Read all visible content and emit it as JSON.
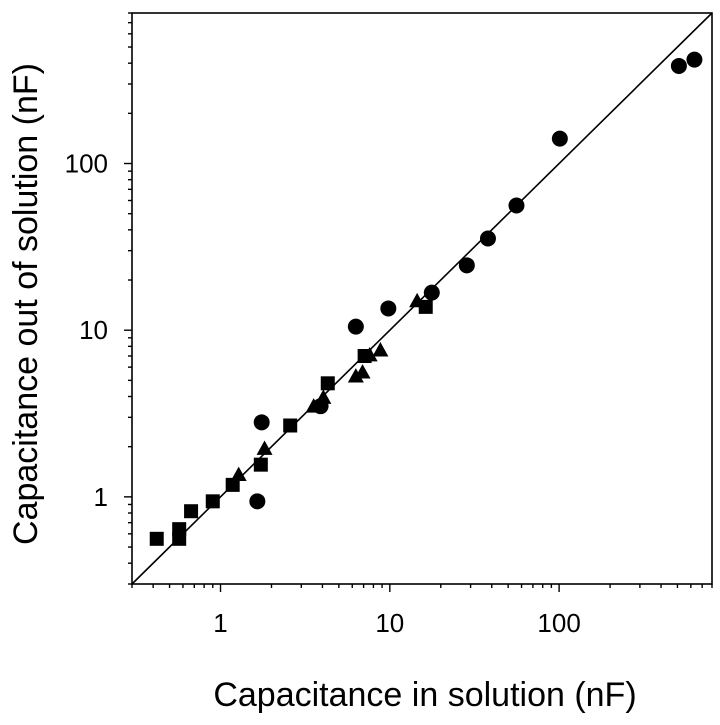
{
  "chart_data": {
    "type": "scatter",
    "title": "",
    "xlabel": "Capacitance in solution (nF)",
    "ylabel": "Capacitance out of solution (nF)",
    "xscale": "log",
    "yscale": "log",
    "xlim": [
      0.3,
      800
    ],
    "ylim": [
      0.3,
      800
    ],
    "x_ticks": [
      {
        "value": 1,
        "label": "1"
      },
      {
        "value": 10,
        "label": "10"
      },
      {
        "value": 100,
        "label": "100"
      }
    ],
    "y_ticks": [
      {
        "value": 1,
        "label": "1"
      },
      {
        "value": 10,
        "label": "10"
      },
      {
        "value": 100,
        "label": "100"
      }
    ],
    "grid": false,
    "legend": "none",
    "reference_line": {
      "type": "identity",
      "from": [
        0.3,
        0.3
      ],
      "to": [
        800,
        800
      ]
    },
    "series": [
      {
        "marker": "circle",
        "color": "#000000",
        "points": [
          {
            "x": 1.65,
            "y": 0.94
          },
          {
            "x": 1.75,
            "y": 2.8
          },
          {
            "x": 3.9,
            "y": 3.5
          },
          {
            "x": 6.3,
            "y": 10.5
          },
          {
            "x": 9.8,
            "y": 13.5
          },
          {
            "x": 17.7,
            "y": 16.8
          },
          {
            "x": 28.5,
            "y": 24.5
          },
          {
            "x": 38,
            "y": 35.5
          },
          {
            "x": 56,
            "y": 56
          },
          {
            "x": 101,
            "y": 141
          },
          {
            "x": 510,
            "y": 385
          },
          {
            "x": 630,
            "y": 420
          }
        ]
      },
      {
        "marker": "square",
        "color": "#000000",
        "points": [
          {
            "x": 0.42,
            "y": 0.56
          },
          {
            "x": 0.57,
            "y": 0.56
          },
          {
            "x": 0.57,
            "y": 0.64
          },
          {
            "x": 0.67,
            "y": 0.82
          },
          {
            "x": 0.9,
            "y": 0.94
          },
          {
            "x": 1.18,
            "y": 1.18
          },
          {
            "x": 1.73,
            "y": 1.56
          },
          {
            "x": 2.58,
            "y": 2.68
          },
          {
            "x": 4.3,
            "y": 4.8
          },
          {
            "x": 7.1,
            "y": 7.0
          },
          {
            "x": 16.3,
            "y": 13.8
          }
        ]
      },
      {
        "marker": "triangle",
        "color": "#000000",
        "points": [
          {
            "x": 1.28,
            "y": 1.36
          },
          {
            "x": 1.82,
            "y": 1.95
          },
          {
            "x": 3.55,
            "y": 3.5
          },
          {
            "x": 4.05,
            "y": 3.95
          },
          {
            "x": 6.3,
            "y": 5.3
          },
          {
            "x": 6.9,
            "y": 5.6
          },
          {
            "x": 7.6,
            "y": 7.1
          },
          {
            "x": 8.8,
            "y": 7.6
          },
          {
            "x": 14.5,
            "y": 15.0
          }
        ]
      }
    ]
  }
}
